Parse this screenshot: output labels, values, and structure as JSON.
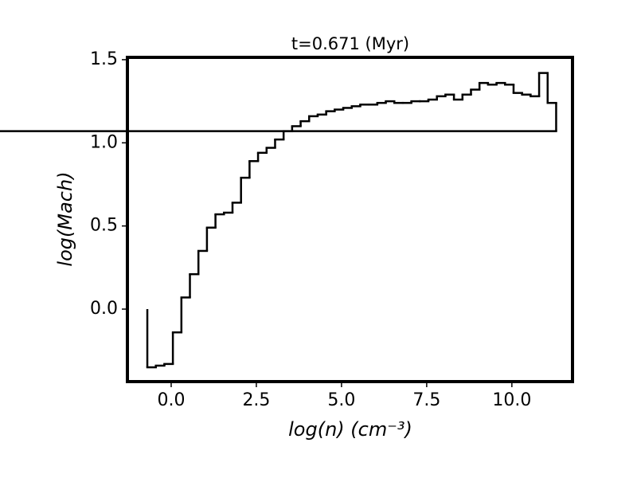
{
  "chart_data": {
    "type": "histogram",
    "title": "t=0.671 (Myr)",
    "xlabel": "log(n) (cm⁻³)",
    "ylabel": "log(Mach)",
    "bins": [
      -0.7,
      -0.45,
      -0.2,
      0.05,
      0.3,
      0.55,
      0.8,
      1.05,
      1.3,
      1.55,
      1.8,
      2.05,
      2.3,
      2.55,
      2.8,
      3.05,
      3.3,
      3.55,
      3.8,
      4.05,
      4.3,
      4.55,
      4.8,
      5.05,
      5.3,
      5.55,
      5.8,
      6.05,
      6.3,
      6.55,
      6.8,
      7.05,
      7.3,
      7.55,
      7.8,
      8.05,
      8.3,
      8.55,
      8.8,
      9.05,
      9.3,
      9.55,
      9.8,
      10.05,
      10.3,
      10.55,
      10.8,
      11.05,
      11.3
    ],
    "values": [
      -0.35,
      -0.34,
      -0.33,
      -0.14,
      0.07,
      0.21,
      0.35,
      0.49,
      0.57,
      0.58,
      0.64,
      0.79,
      0.89,
      0.94,
      0.97,
      1.02,
      1.07,
      1.1,
      1.13,
      1.16,
      1.17,
      1.19,
      1.2,
      1.21,
      1.22,
      1.23,
      1.23,
      1.24,
      1.25,
      1.24,
      1.24,
      1.25,
      1.25,
      1.26,
      1.28,
      1.29,
      1.26,
      1.29,
      1.32,
      1.36,
      1.35,
      1.36,
      1.35,
      1.3,
      1.29,
      1.28,
      1.42,
      1.24,
      1.07
    ],
    "color": "#000000",
    "xlim": [
      -1.285,
      11.78
    ],
    "ylim": [
      -0.436,
      1.514
    ],
    "xticks": [
      {
        "value": 0,
        "label": "0.0"
      },
      2.5,
      {
        "value": 5,
        "label": "5.0"
      },
      7.5,
      {
        "value": 10,
        "label": "10.0"
      }
    ],
    "yticks": [
      {
        "value": 0,
        "label": "0.0"
      },
      0.5,
      {
        "value": 1,
        "label": "1.0"
      },
      {
        "value": 1.5,
        "label": "1.5"
      }
    ]
  }
}
